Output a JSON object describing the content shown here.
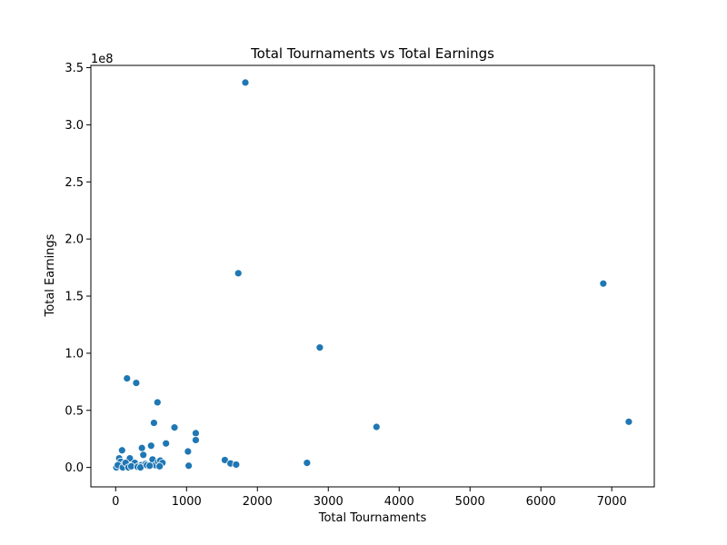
{
  "chart_data": {
    "type": "scatter",
    "title": "Total Tournaments vs Total Earnings",
    "xlabel": "Total Tournaments",
    "ylabel": "Total Earnings",
    "y_offset_label": "1e8",
    "x_ticks": [
      0,
      1000,
      2000,
      3000,
      4000,
      5000,
      6000,
      7000
    ],
    "x_tick_labels": [
      "0",
      "1000",
      "2000",
      "3000",
      "4000",
      "5000",
      "6000",
      "7000"
    ],
    "y_ticks": [
      0.0,
      0.5,
      1.0,
      1.5,
      2.0,
      2.5,
      3.0,
      3.5
    ],
    "y_tick_labels": [
      "0.0",
      "0.5",
      "1.0",
      "1.5",
      "2.0",
      "2.5",
      "3.0",
      "3.5"
    ],
    "xlim": [
      -350,
      7600
    ],
    "ylim": [
      -0.17,
      3.52
    ],
    "grid": false,
    "marker_color": "#1f77b4",
    "series": [
      {
        "x": [
          1830,
          1730,
          6880,
          2880,
          160,
          290,
          590,
          540,
          830,
          1130,
          1130,
          710,
          370,
          500,
          1020,
          390,
          90,
          3680,
          7240,
          1540,
          1620,
          1700,
          2700,
          1030,
          50,
          70,
          120,
          160,
          200,
          240,
          270,
          320,
          360,
          420,
          460,
          520,
          560,
          600,
          630,
          660,
          10,
          30,
          100,
          140,
          180,
          220,
          310,
          350,
          440,
          480,
          620
        ],
        "y": [
          3.37,
          1.7,
          1.61,
          1.05,
          0.78,
          0.74,
          0.57,
          0.39,
          0.35,
          0.3,
          0.24,
          0.21,
          0.17,
          0.19,
          0.14,
          0.11,
          0.15,
          0.355,
          0.4,
          0.065,
          0.035,
          0.025,
          0.04,
          0.015,
          0.08,
          0.05,
          0.03,
          0.01,
          0.08,
          0.02,
          0.04,
          0.01,
          0.02,
          0.03,
          0.01,
          0.07,
          0.02,
          0.05,
          0.06,
          0.04,
          0.0,
          0.02,
          0.0,
          0.04,
          0.0,
          0.01,
          0.005,
          0.0,
          0.02,
          0.015,
          0.01
        ]
      }
    ]
  }
}
